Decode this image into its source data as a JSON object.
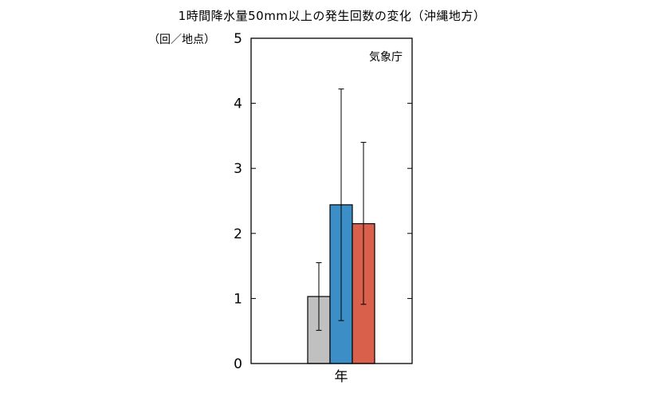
{
  "chart_data": {
    "type": "bar",
    "title": "1時間降水量50mm以上の発生回数の変化（沖縄地方）",
    "ylabel": "（回／地点）",
    "credit": "気象庁",
    "categories": [
      "年"
    ],
    "ylim": [
      0,
      5
    ],
    "yticks": [
      "0",
      "1",
      "2",
      "3",
      "4",
      "5"
    ],
    "series": [
      {
        "values": [
          1.03
        ],
        "error_low": [
          0.51
        ],
        "error_high": [
          1.55
        ],
        "color": "#c0c0c0"
      },
      {
        "values": [
          2.44
        ],
        "error_low": [
          0.66
        ],
        "error_high": [
          4.22
        ],
        "color": "#3b8fc6"
      },
      {
        "values": [
          2.15
        ],
        "error_low": [
          0.91
        ],
        "error_high": [
          3.4
        ],
        "color": "#d9604b"
      }
    ],
    "grid": false
  }
}
